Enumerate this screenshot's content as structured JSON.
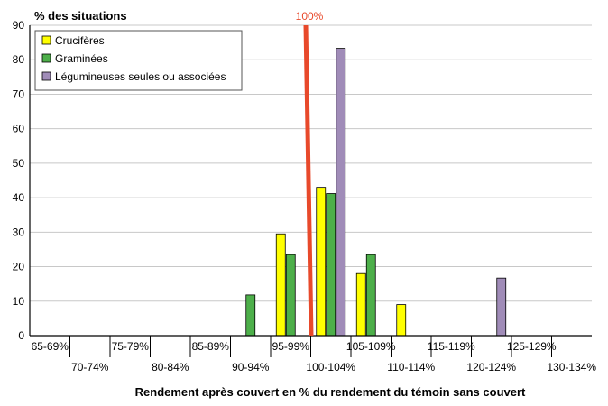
{
  "chart_data": {
    "type": "bar",
    "ylabel": "% des situations",
    "xlabel": "Rendement après couvert en % du rendement du témoin sans couvert",
    "ylim": [
      0,
      90
    ],
    "yticks": [
      0,
      10,
      20,
      30,
      40,
      50,
      60,
      70,
      80,
      90
    ],
    "categories": [
      "65-69%",
      "70-74%",
      "75-79%",
      "80-84%",
      "85-89%",
      "90-94%",
      "95-99%",
      "100-104%",
      "105-109%",
      "110-114%",
      "115-119%",
      "120-124%",
      "125-129%",
      "130-134%"
    ],
    "series": [
      {
        "name": "Crucifères",
        "color": "#ffff00",
        "values": [
          0,
          0,
          0,
          0,
          0,
          0,
          29.5,
          43,
          18,
          9,
          0,
          0,
          0,
          0
        ]
      },
      {
        "name": "Graminées",
        "color": "#4daf4a",
        "values": [
          0,
          0,
          0,
          0,
          0,
          11.8,
          23.5,
          41.2,
          23.5,
          0,
          0,
          0,
          0,
          0
        ]
      },
      {
        "name": "Légumineuses seules ou associées",
        "color": "#a08cb8",
        "values": [
          0,
          0,
          0,
          0,
          0,
          0,
          0,
          83.3,
          0,
          0,
          0,
          16.7,
          0,
          0
        ]
      }
    ],
    "reference_line": {
      "label": "100%",
      "color": "#e8492b"
    },
    "grid": true,
    "legend_position": "top-left"
  }
}
